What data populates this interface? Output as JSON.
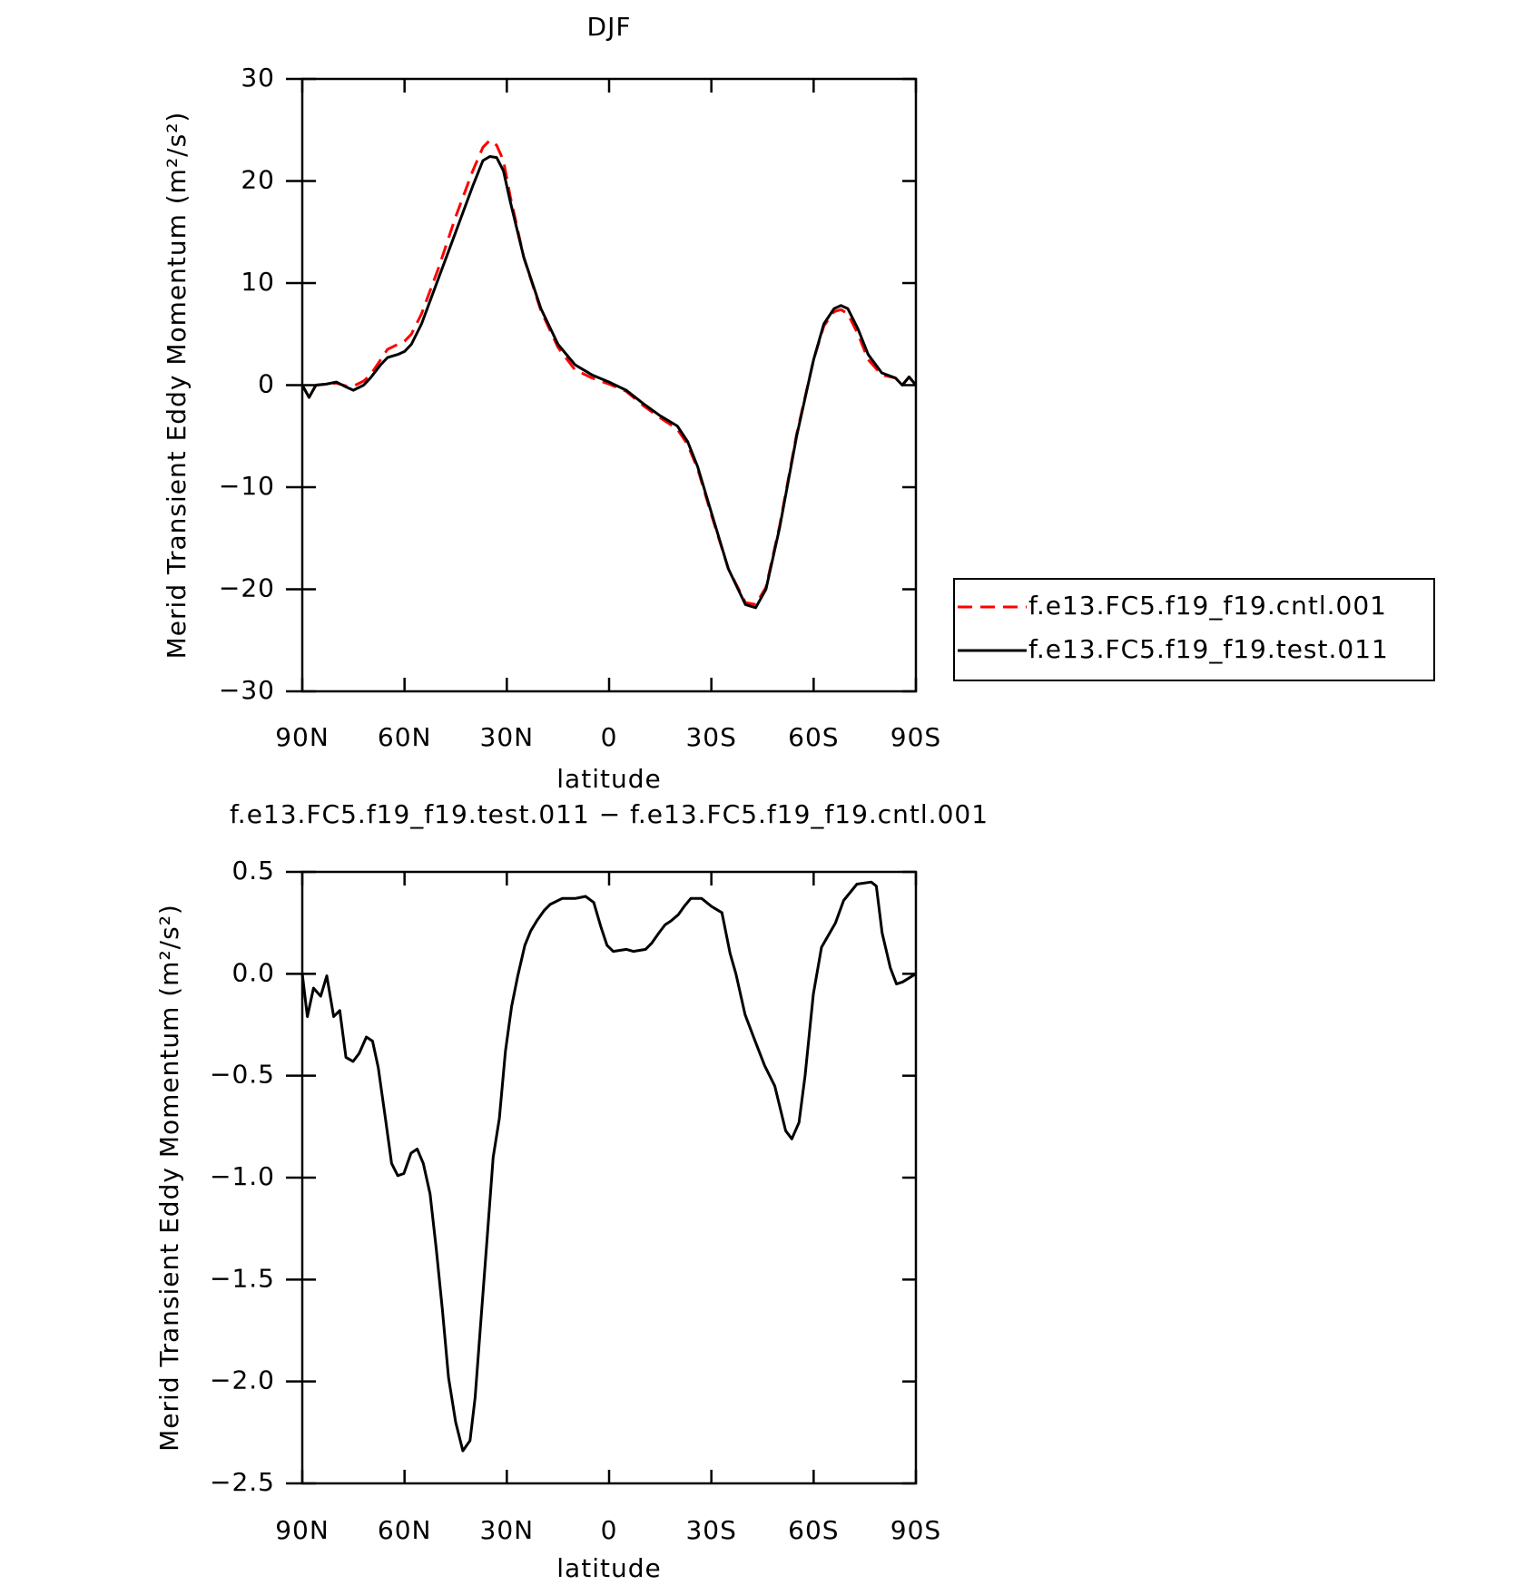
{
  "chart_data": [
    {
      "type": "line",
      "title": "DJF",
      "xlabel": "latitude",
      "ylabel": "Merid Transient Eddy Momentum (m²/s²)",
      "x": [
        90,
        88,
        86,
        83,
        80,
        77,
        75,
        72,
        70,
        67,
        65,
        62,
        60,
        58,
        55,
        50,
        45,
        40,
        37,
        35,
        33,
        31,
        29,
        25,
        20,
        15,
        10,
        5,
        0,
        -5,
        -10,
        -15,
        -20,
        -23,
        -26,
        -30,
        -35,
        -40,
        -43,
        -46,
        -50,
        -55,
        -60,
        -63,
        -66,
        -68,
        -70,
        -73,
        -76,
        -80,
        -84,
        -86,
        -88,
        -90
      ],
      "series": [
        {
          "name": "f.e13.FC5.f19_f19.cntl.001",
          "color": "#ff0000",
          "dash": true,
          "values": [
            0,
            -1.2,
            0,
            0.1,
            0.2,
            -0.1,
            -0.1,
            0.4,
            1,
            2.5,
            3.5,
            4,
            4.3,
            5,
            7,
            11.5,
            16.5,
            21,
            23.3,
            24,
            23.5,
            22,
            18.5,
            12.5,
            7.3,
            3.7,
            1.5,
            0.7,
            0.1,
            -0.6,
            -2,
            -3.2,
            -4.3,
            -5.8,
            -8.2,
            -12.7,
            -18,
            -21.3,
            -21.5,
            -19.8,
            -13.8,
            -4.8,
            2.5,
            5.8,
            7.2,
            7.4,
            7,
            5,
            2.5,
            1,
            0.7,
            0,
            0.8,
            0
          ]
        },
        {
          "name": "f.e13.FC5.f19_f19.test.011",
          "color": "#000000",
          "dash": false,
          "values": [
            0,
            -1.2,
            0,
            0.1,
            0.3,
            -0.2,
            -0.5,
            0,
            0.7,
            2,
            2.7,
            3,
            3.3,
            4,
            6,
            10.5,
            15,
            19.5,
            22,
            22.4,
            22.3,
            21,
            18,
            12.5,
            7.5,
            4,
            2,
            1,
            0.3,
            -0.5,
            -1.8,
            -3,
            -4,
            -5.5,
            -8,
            -12.5,
            -18,
            -21.5,
            -21.8,
            -20,
            -14,
            -5,
            2.5,
            6,
            7.5,
            7.8,
            7.5,
            5.5,
            3,
            1.2,
            0.7,
            0,
            0.8,
            0
          ]
        }
      ],
      "xlim": [
        90,
        -90
      ],
      "xticks": [
        {
          "value": 90,
          "label": "90N"
        },
        {
          "value": 60,
          "label": "60N"
        },
        {
          "value": 30,
          "label": "30N"
        },
        0,
        {
          "value": -30,
          "label": "30S"
        },
        {
          "value": -60,
          "label": "60S"
        },
        {
          "value": -90,
          "label": "90S"
        }
      ],
      "ylim": [
        -30,
        30
      ],
      "yticks": [
        {
          "value": -30,
          "label": "−30"
        },
        {
          "value": -20,
          "label": "−20"
        },
        {
          "value": -10,
          "label": "−10"
        },
        0,
        10,
        20,
        30
      ],
      "legend": "right"
    },
    {
      "type": "line",
      "title": "f.e13.FC5.f19_f19.test.011 − f.e13.FC5.f19_f19.cntl.001",
      "xlabel": "latitude",
      "ylabel": "Merid Transient Eddy Momentum (m²/s²)",
      "x": [
        90,
        88.5,
        86.7,
        84.6,
        82.8,
        80.8,
        79,
        77.2,
        75.1,
        73.3,
        71.2,
        69.4,
        67.7,
        65.6,
        63.8,
        62,
        60.2,
        58.1,
        56.3,
        54.5,
        52.5,
        50.7,
        48.9,
        47.1,
        45,
        42.9,
        40.8,
        39.3,
        37.6,
        35.8,
        34,
        32.2,
        30.4,
        28.6,
        26.8,
        24.7,
        23,
        21.2,
        19.1,
        17.3,
        13.7,
        9.8,
        6.9,
        4.5,
        2.4,
        0.6,
        -1.2,
        -5.1,
        -7.1,
        -10.7,
        -12.5,
        -14.6,
        -16.4,
        -18.2,
        -20.3,
        -22,
        -24,
        -27.1,
        -30.1,
        -33.1,
        -35.5,
        -37.2,
        -39.9,
        -42.6,
        -45.6,
        -48.6,
        -51.8,
        -53.6,
        -55.7,
        -57.5,
        -59.9,
        -62.3,
        -66.4,
        -68.8,
        -72.7,
        -76.9,
        -78.4,
        -80.1,
        -82.5,
        -84.3,
        -86.1,
        -90
      ],
      "series": [
        {
          "name": "f.e13.FC5.f19_f19.test.011",
          "color": "#000000",
          "dash": false,
          "values": [
            0,
            -0.21,
            -0.07,
            -0.11,
            -0.01,
            -0.21,
            -0.18,
            -0.41,
            -0.43,
            -0.39,
            -0.31,
            -0.33,
            -0.46,
            -0.71,
            -0.93,
            -0.99,
            -0.98,
            -0.88,
            -0.86,
            -0.93,
            -1.08,
            -1.35,
            -1.65,
            -1.98,
            -2.2,
            -2.34,
            -2.29,
            -2.08,
            -1.7,
            -1.3,
            -0.9,
            -0.71,
            -0.38,
            -0.16,
            -0.01,
            0.14,
            0.21,
            0.26,
            0.31,
            0.34,
            0.37,
            0.37,
            0.38,
            0.35,
            0.23,
            0.14,
            0.11,
            0.12,
            0.11,
            0.12,
            0.15,
            0.2,
            0.24,
            0.26,
            0.29,
            0.33,
            0.37,
            0.37,
            0.33,
            0.3,
            0.1,
            0,
            -0.2,
            -0.32,
            -0.45,
            -0.55,
            -0.77,
            -0.81,
            -0.73,
            -0.5,
            -0.1,
            0.13,
            0.25,
            0.36,
            0.44,
            0.45,
            0.43,
            0.2,
            0.03,
            -0.05,
            -0.04,
            0
          ]
        }
      ],
      "xlim": [
        90,
        -90
      ],
      "xticks": [
        {
          "value": 90,
          "label": "90N"
        },
        {
          "value": 60,
          "label": "60N"
        },
        {
          "value": 30,
          "label": "30N"
        },
        0,
        {
          "value": -30,
          "label": "30S"
        },
        {
          "value": -60,
          "label": "60S"
        },
        {
          "value": -90,
          "label": "90S"
        }
      ],
      "ylim": [
        -2.5,
        0.5
      ],
      "yticks": [
        {
          "value": -2.5,
          "label": "−2.5"
        },
        {
          "value": -2,
          "label": "−2.0"
        },
        {
          "value": -1.5,
          "label": "−1.5"
        },
        {
          "value": -1,
          "label": "−1.0"
        },
        {
          "value": -0.5,
          "label": "−0.5"
        },
        {
          "value": 0,
          "label": "0.0"
        },
        0.5
      ]
    }
  ]
}
